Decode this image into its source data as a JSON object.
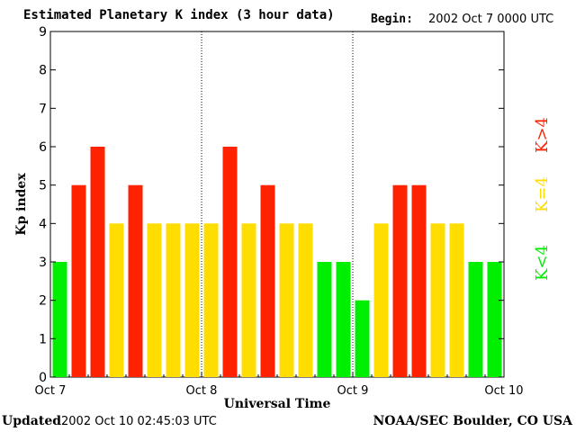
{
  "header": {
    "title": "Estimated Planetary K index (3 hour data)",
    "begin_label": "Begin:",
    "begin_value": "2002 Oct 7 0000 UTC"
  },
  "footer": {
    "updated_label": "Updated",
    "updated_value": "2002 Oct 10 02:45:03 UTC",
    "source": "NOAA/SEC Boulder, CO USA"
  },
  "legend": {
    "high": "K>4",
    "equal": "K=4",
    "low": "K<4"
  },
  "colors": {
    "low": "#00ee00",
    "equal": "#ffdd00",
    "high": "#ff2200"
  },
  "chart_data": {
    "type": "bar",
    "title": "Estimated Planetary K index (3 hour data)",
    "xlabel": "Universal Time",
    "ylabel": "Kp index",
    "ylim": [
      0,
      9
    ],
    "yticks": [
      0,
      1,
      2,
      3,
      4,
      5,
      6,
      7,
      8,
      9
    ],
    "x_tick_labels": [
      "Oct 7",
      "Oct 8",
      "Oct 9",
      "Oct 10"
    ],
    "day_separators": [
      "Oct 8",
      "Oct 9"
    ],
    "grid": false,
    "legend_placement": "right",
    "bar_interval_hours": 3,
    "values": [
      3,
      5,
      6,
      4,
      5,
      4,
      4,
      4,
      4,
      6,
      4,
      5,
      4,
      4,
      3,
      3,
      2,
      4,
      5,
      5,
      4,
      4,
      3,
      3
    ]
  }
}
